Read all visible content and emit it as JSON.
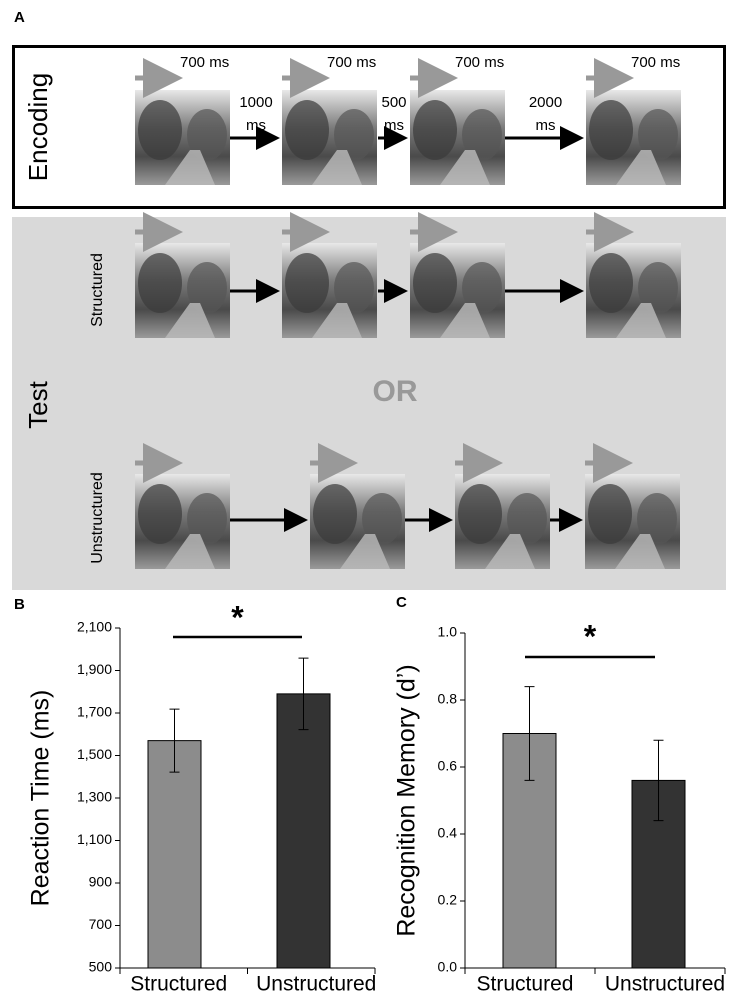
{
  "panel_a": {
    "label": "A",
    "encoding": {
      "title": "Encoding",
      "durations": [
        "700 ms",
        "700 ms",
        "700 ms",
        "700 ms"
      ],
      "intervals": [
        [
          "1000",
          "ms"
        ],
        [
          "500",
          "ms"
        ],
        [
          "2000",
          "ms"
        ]
      ]
    },
    "test": {
      "title": "Test",
      "structured": "Structured",
      "or": "OR",
      "unstructured": "Unstructured"
    }
  },
  "chart_data": [
    {
      "type": "bar",
      "panel_label": "B",
      "y_label": "Reaction Time (ms)",
      "categories": [
        "Structured",
        "Unstructured"
      ],
      "values": [
        1570,
        1790
      ],
      "errors": [
        148,
        168
      ],
      "colors": [
        "#8c8c8c",
        "#333333"
      ],
      "ylim": [
        500,
        2100
      ],
      "yticks": [
        500,
        700,
        900,
        {
          "value": 1100,
          "label": "1,100"
        },
        {
          "value": 1300,
          "label": "1,300"
        },
        {
          "value": 1500,
          "label": "1,500"
        },
        {
          "value": 1700,
          "label": "1,700"
        },
        {
          "value": 1900,
          "label": "1,900"
        },
        {
          "value": 2100,
          "label": "2,100"
        }
      ],
      "annotation": "*"
    },
    {
      "type": "bar",
      "panel_label": "C",
      "y_label": "Recognition Memory (d’)",
      "categories": [
        "Structured",
        "Unstructured"
      ],
      "values": [
        0.7,
        0.56
      ],
      "errors": [
        0.14,
        0.12
      ],
      "colors": [
        "#8c8c8c",
        "#333333"
      ],
      "ylim": [
        0,
        1
      ],
      "yticks": [
        {
          "value": 0,
          "label": "0.0"
        },
        0.2,
        0.4,
        0.6,
        0.8,
        {
          "value": 1,
          "label": "1.0"
        }
      ],
      "annotation": "*"
    }
  ]
}
